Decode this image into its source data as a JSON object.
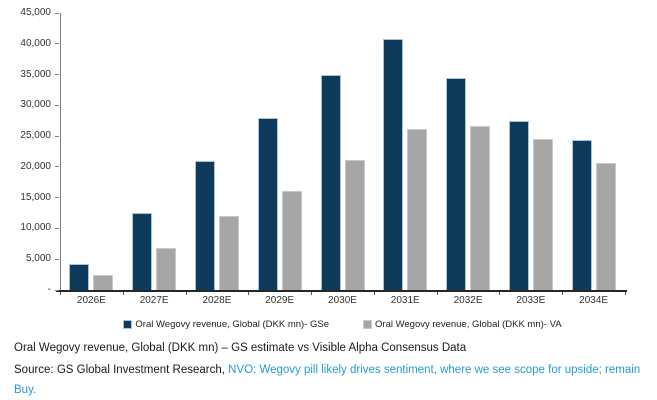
{
  "chart_data": {
    "type": "bar",
    "title": "",
    "categories": [
      "2026E",
      "2027E",
      "2028E",
      "2029E",
      "2030E",
      "2031E",
      "2032E",
      "2033E",
      "2034E"
    ],
    "series": [
      {
        "name": "Oral Wegovy revenue, Global (DKK mn)- GSe",
        "color": "#0e3a5c",
        "border_color": "#a9c3d8",
        "values": [
          4200,
          12500,
          21000,
          27900,
          35000,
          40800,
          34500,
          27500,
          24400
        ]
      },
      {
        "name": "Oral Wegovy revenue, Global (DKK mn)- VA",
        "color": "#a6a6a6",
        "border_color": "#c9c9c9",
        "values": [
          2500,
          6900,
          12100,
          16100,
          21100,
          26100,
          26700,
          24500,
          20700
        ]
      }
    ],
    "ylim": [
      0,
      45000
    ],
    "ylabel": "",
    "xlabel": "",
    "grid": false,
    "legend_position": "bottom",
    "yticks": [
      {
        "value": 45000,
        "label": "45,000"
      },
      {
        "value": 40000,
        "label": "40,000"
      },
      {
        "value": 35000,
        "label": "35,000"
      },
      {
        "value": 30000,
        "label": "30,000"
      },
      {
        "value": 25000,
        "label": "25,000"
      },
      {
        "value": 20000,
        "label": "20,000"
      },
      {
        "value": 15000,
        "label": "15,000"
      },
      {
        "value": 10000,
        "label": "10,000"
      },
      {
        "value": 5000,
        "label": "5,000"
      },
      {
        "value": 0,
        "label": "-"
      }
    ]
  },
  "footer": {
    "caption": "Oral Wegovy revenue, Global (DKK mn) – GS estimate vs Visible Alpha Consensus Data",
    "source_prefix": "Source: GS Global Investment Research, ",
    "source_link": "NVO: Wegovy pill likely drives sentiment, where we see scope for upside; remain Buy.",
    "link_color": "#269bd5"
  }
}
